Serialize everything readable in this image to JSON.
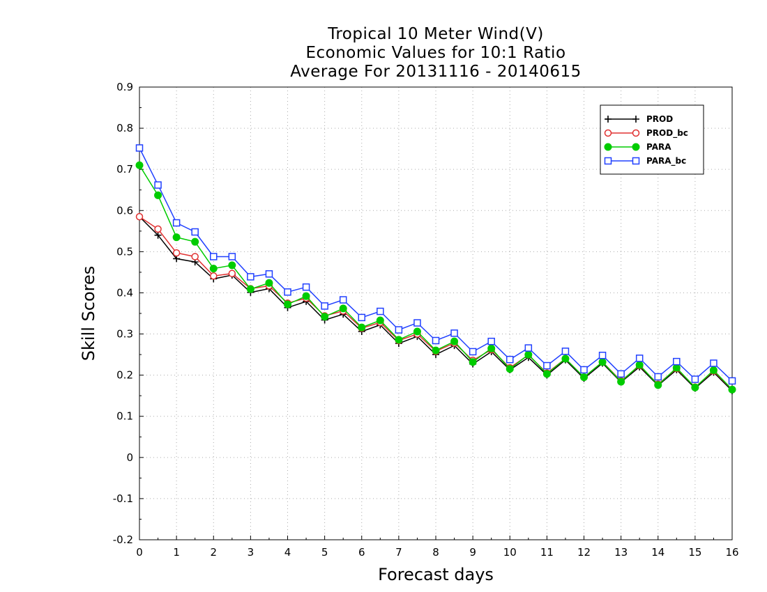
{
  "chart_data": {
    "type": "line",
    "title": [
      "Tropical 10 Meter Wind(V)",
      "Economic Values for 10:1 Ratio",
      "Average For 20131116 - 20140615"
    ],
    "xlabel": "Forecast days",
    "ylabel": "Skill Scores",
    "xlim": [
      0,
      16
    ],
    "ylim": [
      -0.2,
      0.9
    ],
    "xticks": [
      "0",
      "1",
      "2",
      "3",
      "4",
      "5",
      "6",
      "7",
      "8",
      "9",
      "10",
      "11",
      "12",
      "13",
      "14",
      "15",
      "16"
    ],
    "yticks": [
      "-0.2",
      "-0.1",
      "0",
      "0.1",
      "0.2",
      "0.3",
      "0.4",
      "0.5",
      "0.6",
      "0.7",
      "0.8",
      "0.9"
    ],
    "grid": true,
    "legend_position": "top-right",
    "x": [
      0,
      0.5,
      1,
      1.5,
      2,
      2.5,
      3,
      3.5,
      4,
      4.5,
      5,
      5.5,
      6,
      6.5,
      7,
      7.5,
      8,
      8.5,
      9,
      9.5,
      10,
      10.5,
      11,
      11.5,
      12,
      12.5,
      13,
      13.5,
      14,
      14.5,
      15,
      15.5,
      16
    ],
    "series": [
      {
        "name": "PROD",
        "color": "#000000",
        "marker": "plus",
        "values": [
          0.585,
          0.54,
          0.483,
          0.475,
          0.434,
          0.443,
          0.401,
          0.41,
          0.364,
          0.379,
          0.334,
          0.348,
          0.306,
          0.322,
          0.277,
          0.294,
          0.25,
          0.272,
          0.227,
          0.257,
          0.213,
          0.243,
          0.2,
          0.237,
          0.192,
          0.229,
          0.183,
          0.22,
          0.175,
          0.213,
          0.168,
          0.207,
          0.162
        ]
      },
      {
        "name": "PROD_bc",
        "color": "#e03030",
        "marker": "circle-open",
        "values": [
          0.585,
          0.555,
          0.497,
          0.488,
          0.441,
          0.447,
          0.41,
          0.417,
          0.375,
          0.387,
          0.344,
          0.356,
          0.314,
          0.328,
          0.284,
          0.3,
          0.258,
          0.278,
          0.236,
          0.262,
          0.218,
          0.249,
          0.205,
          0.24,
          0.195,
          0.232,
          0.186,
          0.223,
          0.178,
          0.216,
          0.171,
          0.21,
          0.165
        ]
      },
      {
        "name": "PARA",
        "color": "#00cc00",
        "marker": "circle-filled",
        "values": [
          0.71,
          0.637,
          0.535,
          0.524,
          0.459,
          0.467,
          0.409,
          0.424,
          0.372,
          0.392,
          0.342,
          0.362,
          0.316,
          0.333,
          0.286,
          0.306,
          0.26,
          0.282,
          0.232,
          0.265,
          0.215,
          0.25,
          0.203,
          0.24,
          0.195,
          0.232,
          0.184,
          0.225,
          0.176,
          0.218,
          0.17,
          0.212,
          0.165
        ]
      },
      {
        "name": "PARA_bc",
        "color": "#2040ff",
        "marker": "square-open",
        "values": [
          0.752,
          0.662,
          0.57,
          0.548,
          0.488,
          0.488,
          0.439,
          0.446,
          0.402,
          0.414,
          0.368,
          0.383,
          0.34,
          0.355,
          0.31,
          0.327,
          0.284,
          0.302,
          0.257,
          0.282,
          0.238,
          0.266,
          0.223,
          0.258,
          0.213,
          0.248,
          0.203,
          0.241,
          0.196,
          0.233,
          0.19,
          0.229,
          0.186
        ]
      }
    ]
  }
}
